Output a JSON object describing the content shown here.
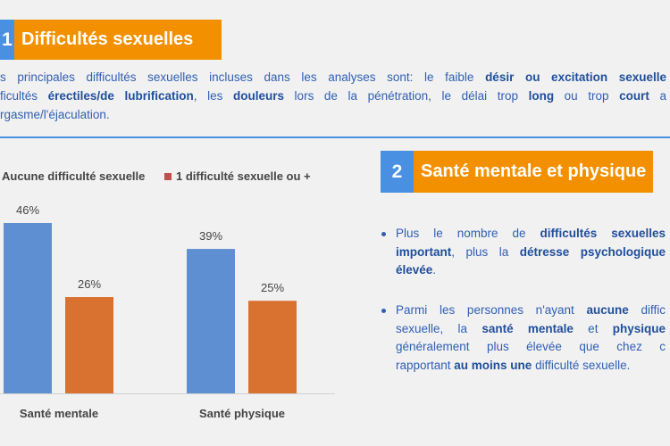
{
  "section1": {
    "number": "1",
    "title": "Difficultés sexuelles",
    "lines": [
      [
        {
          "t": "s principales difficultés sexuelles incluses dans les analyses sont: le faible ",
          "b": false
        },
        {
          "t": "désir ou excitation sexuelle",
          "b": true
        }
      ],
      [
        {
          "t": "ficultés ",
          "b": false
        },
        {
          "t": "érectiles/de lubrification",
          "b": true
        },
        {
          "t": ", les ",
          "b": false
        },
        {
          "t": "douleurs",
          "b": true
        },
        {
          "t": " lors de la pénétration, le délai trop ",
          "b": false
        },
        {
          "t": "long",
          "b": true
        },
        {
          "t": " ou trop ",
          "b": false
        },
        {
          "t": "court",
          "b": true
        },
        {
          "t": " a",
          "b": false
        }
      ],
      [
        {
          "t": "rgasme/l'éjaculation.",
          "b": false
        }
      ]
    ]
  },
  "section2": {
    "number": "2",
    "title": "Santé mentale et physique",
    "bullets": [
      [
        [
          {
            "t": "Plus le nombre de ",
            "b": false
          },
          {
            "t": "difficultés sexuelles",
            "b": true
          }
        ],
        [
          {
            "t": "important",
            "b": true
          },
          {
            "t": ", plus la ",
            "b": false
          },
          {
            "t": "détresse psychologique",
            "b": true
          }
        ],
        [
          {
            "t": "élevée",
            "b": true
          },
          {
            "t": ".",
            "b": false
          }
        ]
      ],
      [
        [
          {
            "t": "Parmi les personnes n'ayant ",
            "b": false
          },
          {
            "t": "aucune",
            "b": true
          },
          {
            "t": " diffic",
            "b": false
          }
        ],
        [
          {
            "t": "sexuelle, la ",
            "b": false
          },
          {
            "t": "santé mentale",
            "b": true
          },
          {
            "t": " et ",
            "b": false
          },
          {
            "t": "physique",
            "b": true
          }
        ],
        [
          {
            "t": "généralement plus élevée que chez c",
            "b": false
          }
        ],
        [
          {
            "t": "rapportant ",
            "b": false
          },
          {
            "t": "au moins une",
            "b": true
          },
          {
            "t": " difficulté sexuelle.",
            "b": false
          }
        ]
      ]
    ]
  },
  "colors": {
    "accent_blue": "#4a90e2",
    "accent_orange": "#f39000",
    "series_blue": "#5e8fd3",
    "series_orange": "#d97230",
    "legend_orange_swatch": "#c0504d"
  },
  "chart_data": {
    "type": "bar",
    "categories": [
      "Santé mentale",
      "Santé physique"
    ],
    "series": [
      {
        "name": "Aucune difficulté sexuelle",
        "values": [
          46,
          39
        ],
        "labels": [
          "46%",
          "39%"
        ]
      },
      {
        "name": "1 difficulté sexuelle ou +",
        "values": [
          26,
          25
        ],
        "labels": [
          "26%",
          "25%"
        ]
      }
    ],
    "ylim": [
      0,
      50
    ],
    "grid": false,
    "legend": "top"
  }
}
